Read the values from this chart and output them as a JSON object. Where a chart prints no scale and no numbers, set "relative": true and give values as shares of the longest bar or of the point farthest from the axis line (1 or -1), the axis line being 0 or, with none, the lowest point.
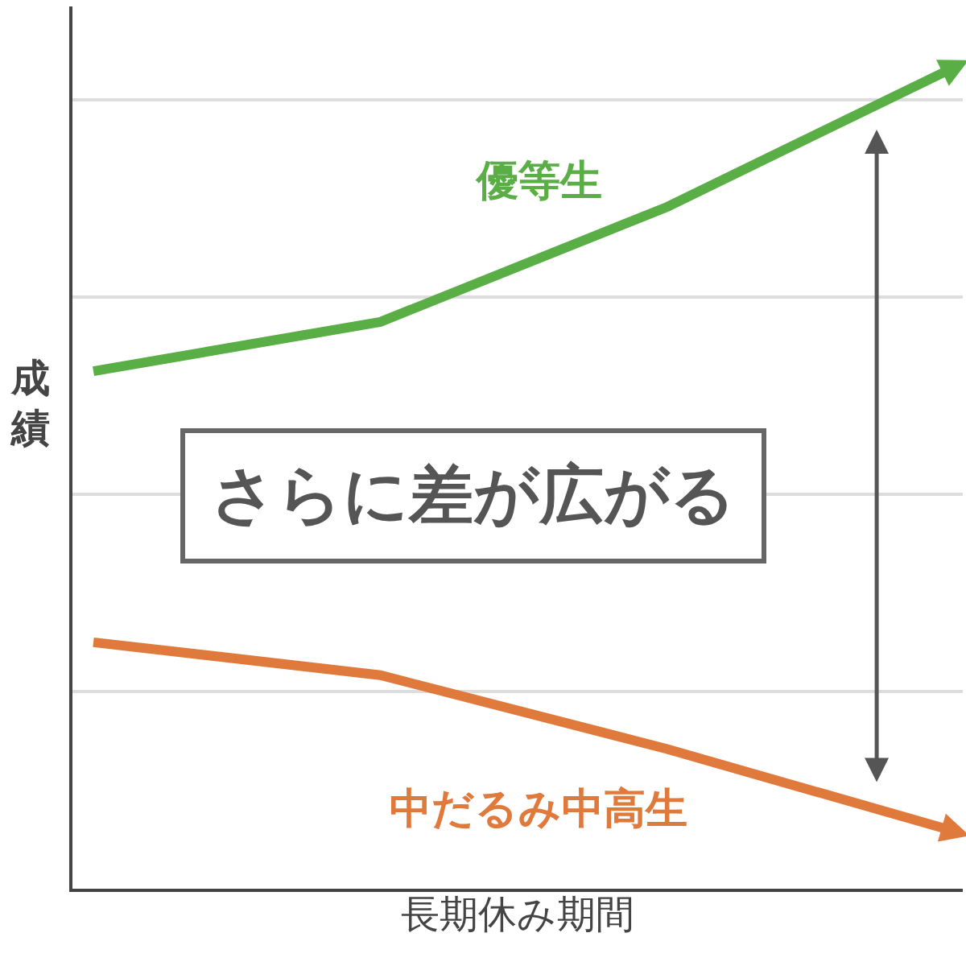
{
  "chart_data": {
    "type": "line",
    "relative": true,
    "xlabel": "長期休み期間",
    "ylabel": "成績",
    "categories": [
      null,
      null,
      null,
      null
    ],
    "series": [
      {
        "name": "優等生",
        "color": "#5aae46",
        "values": [
          0.63,
          0.69,
          0.83,
          1.0
        ]
      },
      {
        "name": "中だるみ中高生",
        "color": "#e07a3c",
        "values": [
          0.3,
          0.26,
          0.17,
          0.07
        ]
      }
    ],
    "annotations": [
      "さらに差が広がる"
    ],
    "grid": "y",
    "legend": false,
    "line_style": "solid"
  }
}
